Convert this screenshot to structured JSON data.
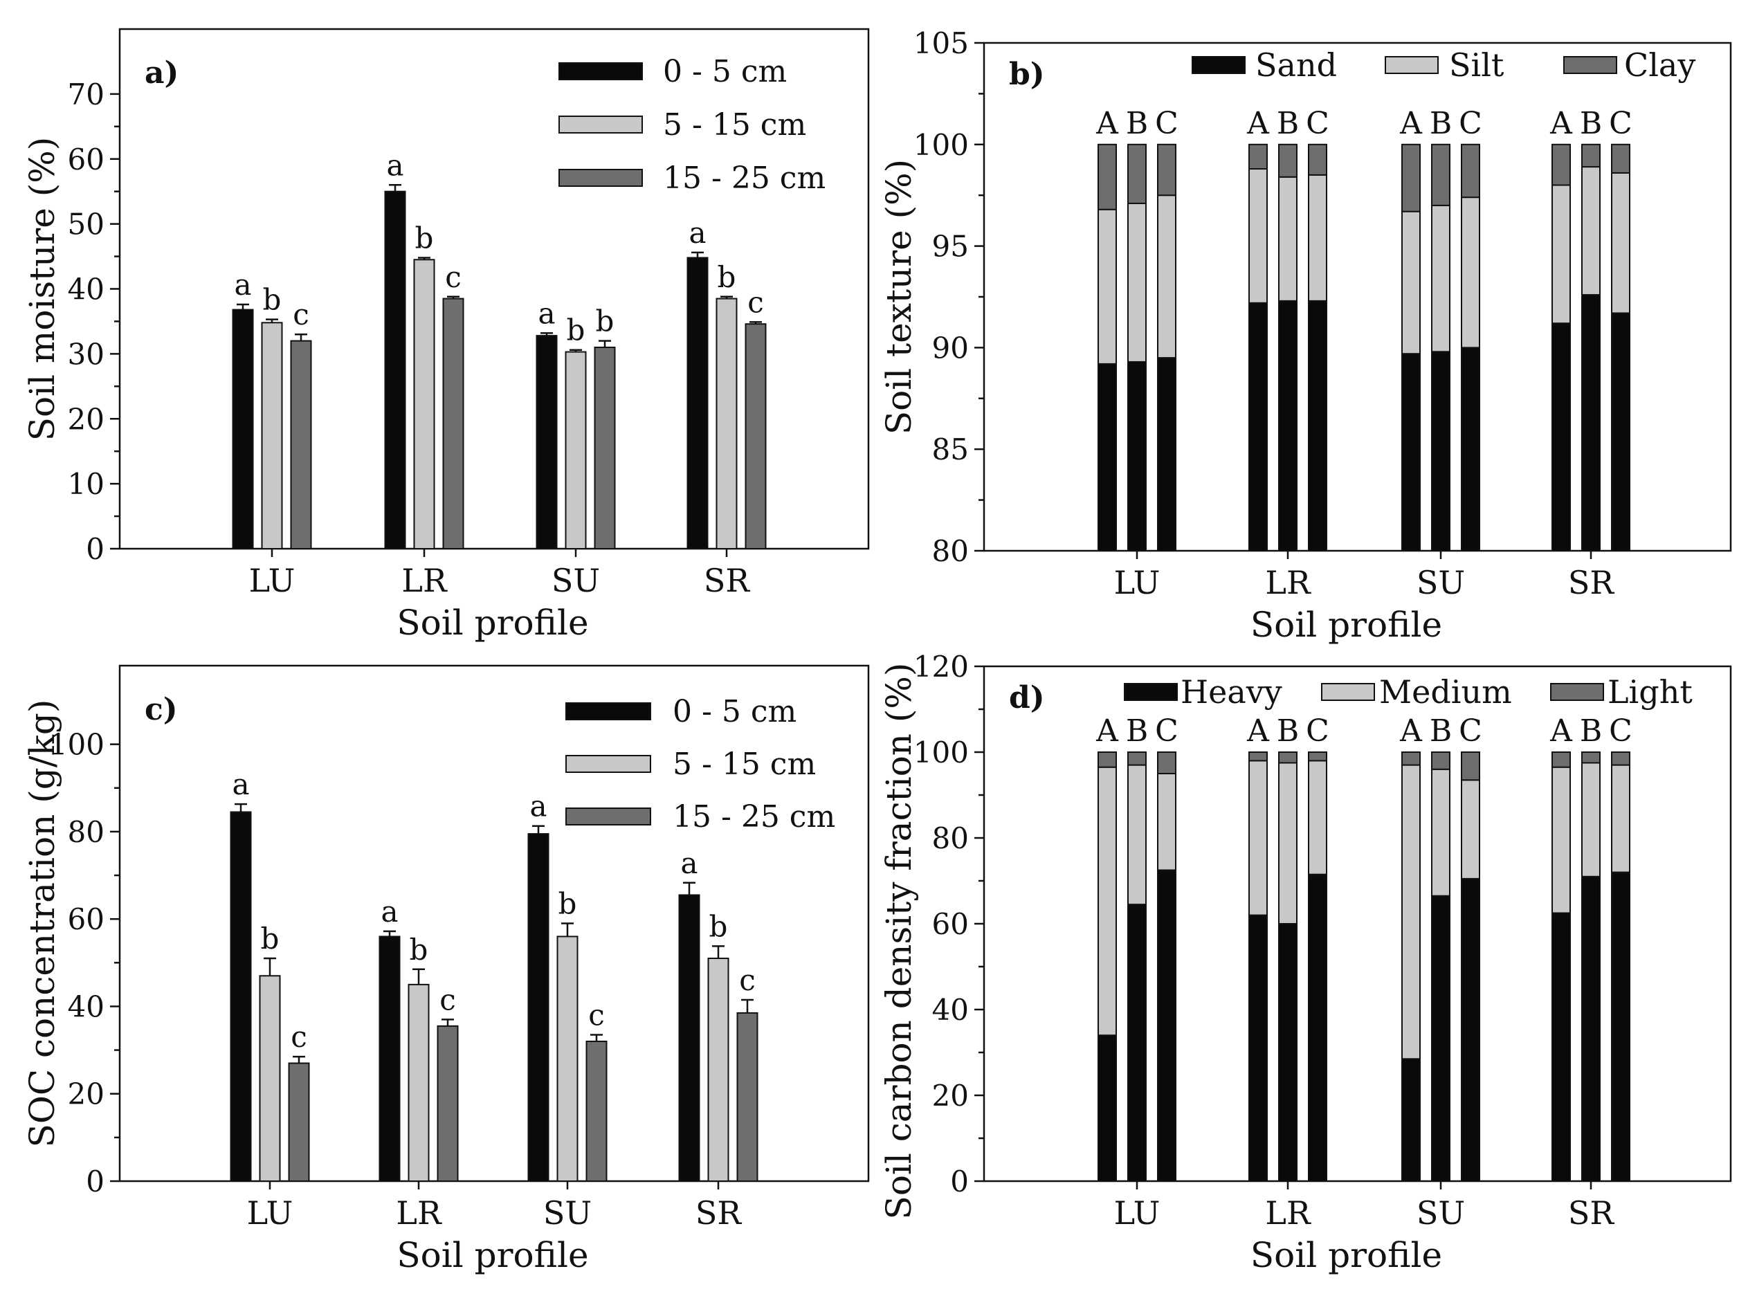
{
  "colors": {
    "dark": "#0a0a0a",
    "light": "#c8c8c8",
    "mid": "#6e6e6e",
    "axis": "#111111",
    "background": "#ffffff"
  },
  "chart_data": [
    {
      "panel": "a)",
      "type": "bar",
      "xlabel": "Soil profile",
      "ylabel": "Soil moisture (%)",
      "ylim": [
        0,
        80
      ],
      "yticks": [
        0,
        10,
        20,
        30,
        40,
        50,
        60,
        70
      ],
      "legend_position": "top-right",
      "categories": [
        "LU",
        "LR",
        "SU",
        "SR"
      ],
      "series": [
        {
          "name": "0 - 5 cm",
          "color": "dark",
          "values": [
            36.8,
            55.0,
            32.8,
            44.8
          ],
          "errors": [
            0.8,
            1.0,
            0.4,
            0.8
          ],
          "letters": [
            "a",
            "a",
            "a",
            "a"
          ]
        },
        {
          "name": "5 - 15 cm",
          "color": "light",
          "values": [
            34.8,
            44.5,
            30.3,
            38.5
          ],
          "errors": [
            0.5,
            0.3,
            0.3,
            0.3
          ],
          "letters": [
            "b",
            "b",
            "b",
            "b"
          ]
        },
        {
          "name": "15 - 25 cm",
          "color": "mid",
          "values": [
            32.0,
            38.5,
            31.0,
            34.6
          ],
          "errors": [
            1.0,
            0.3,
            1.0,
            0.3
          ],
          "letters": [
            "c",
            "c",
            "b",
            "c"
          ]
        }
      ]
    },
    {
      "panel": "b)",
      "type": "stacked-bar",
      "xlabel": "Soil profile",
      "ylabel": "Soil texture (%)",
      "ylim": [
        80,
        105
      ],
      "yticks": [
        80,
        85,
        90,
        95,
        100,
        105
      ],
      "legend_position": "top",
      "categories": [
        "LU",
        "LR",
        "SU",
        "SR"
      ],
      "sublabels": [
        "A",
        "B",
        "C"
      ],
      "series": [
        {
          "name": "Sand",
          "color": "dark",
          "values": [
            [
              89.2,
              89.3,
              89.5
            ],
            [
              92.2,
              92.3,
              92.3
            ],
            [
              89.7,
              89.8,
              90.0
            ],
            [
              91.2,
              92.6,
              91.7
            ]
          ]
        },
        {
          "name": "Silt",
          "color": "light",
          "values": [
            [
              7.6,
              7.8,
              8.0
            ],
            [
              6.6,
              6.1,
              6.2
            ],
            [
              7.0,
              7.2,
              7.4
            ],
            [
              6.8,
              6.3,
              6.9
            ]
          ]
        },
        {
          "name": "Clay",
          "color": "mid",
          "values": [
            [
              3.2,
              2.9,
              2.5
            ],
            [
              1.2,
              1.6,
              1.5
            ],
            [
              3.3,
              3.0,
              2.6
            ],
            [
              2.0,
              1.1,
              1.4
            ]
          ]
        }
      ]
    },
    {
      "panel": "c)",
      "type": "bar",
      "xlabel": "Soil profile",
      "ylabel": "SOC concentration (g/kg)",
      "ylim": [
        0,
        118
      ],
      "yticks": [
        0,
        20,
        40,
        60,
        80,
        100
      ],
      "legend_position": "top-right",
      "categories": [
        "LU",
        "LR",
        "SU",
        "SR"
      ],
      "series": [
        {
          "name": "0 - 5 cm",
          "color": "dark",
          "values": [
            84.5,
            56.0,
            79.5,
            65.5
          ],
          "errors": [
            1.8,
            1.2,
            1.8,
            2.8
          ],
          "letters": [
            "a",
            "a",
            "a",
            "a"
          ]
        },
        {
          "name": "5 - 15 cm",
          "color": "light",
          "values": [
            47.0,
            45.0,
            56.0,
            51.0
          ],
          "errors": [
            4.0,
            3.5,
            3.0,
            2.8
          ],
          "letters": [
            "b",
            "b",
            "b",
            "b"
          ]
        },
        {
          "name": "15 - 25 cm",
          "color": "mid",
          "values": [
            27.0,
            35.5,
            32.0,
            38.5
          ],
          "errors": [
            1.5,
            1.5,
            1.5,
            3.0
          ],
          "letters": [
            "c",
            "c",
            "c",
            "c"
          ]
        }
      ]
    },
    {
      "panel": "d)",
      "type": "stacked-bar",
      "xlabel": "Soil profile",
      "ylabel": "Soil carbon density fraction (%)",
      "ylim": [
        0,
        120
      ],
      "yticks": [
        0,
        20,
        40,
        60,
        80,
        100,
        120
      ],
      "legend_position": "top",
      "categories": [
        "LU",
        "LR",
        "SU",
        "SR"
      ],
      "sublabels": [
        "A",
        "B",
        "C"
      ],
      "series": [
        {
          "name": "Heavy",
          "color": "dark",
          "values": [
            [
              34,
              64.5,
              72.5
            ],
            [
              62,
              60,
              71.5
            ],
            [
              28.5,
              66.5,
              70.5
            ],
            [
              62.5,
              71,
              72
            ]
          ]
        },
        {
          "name": "Medium",
          "color": "light",
          "values": [
            [
              62.5,
              32.5,
              22.5
            ],
            [
              36,
              37.5,
              26.5
            ],
            [
              68.5,
              29.5,
              23
            ],
            [
              34,
              26.5,
              25
            ]
          ]
        },
        {
          "name": "Light",
          "color": "mid",
          "values": [
            [
              3.5,
              3,
              5
            ],
            [
              2,
              2.5,
              2
            ],
            [
              3,
              4,
              6.5
            ],
            [
              3.5,
              2.5,
              3
            ]
          ]
        }
      ]
    }
  ]
}
